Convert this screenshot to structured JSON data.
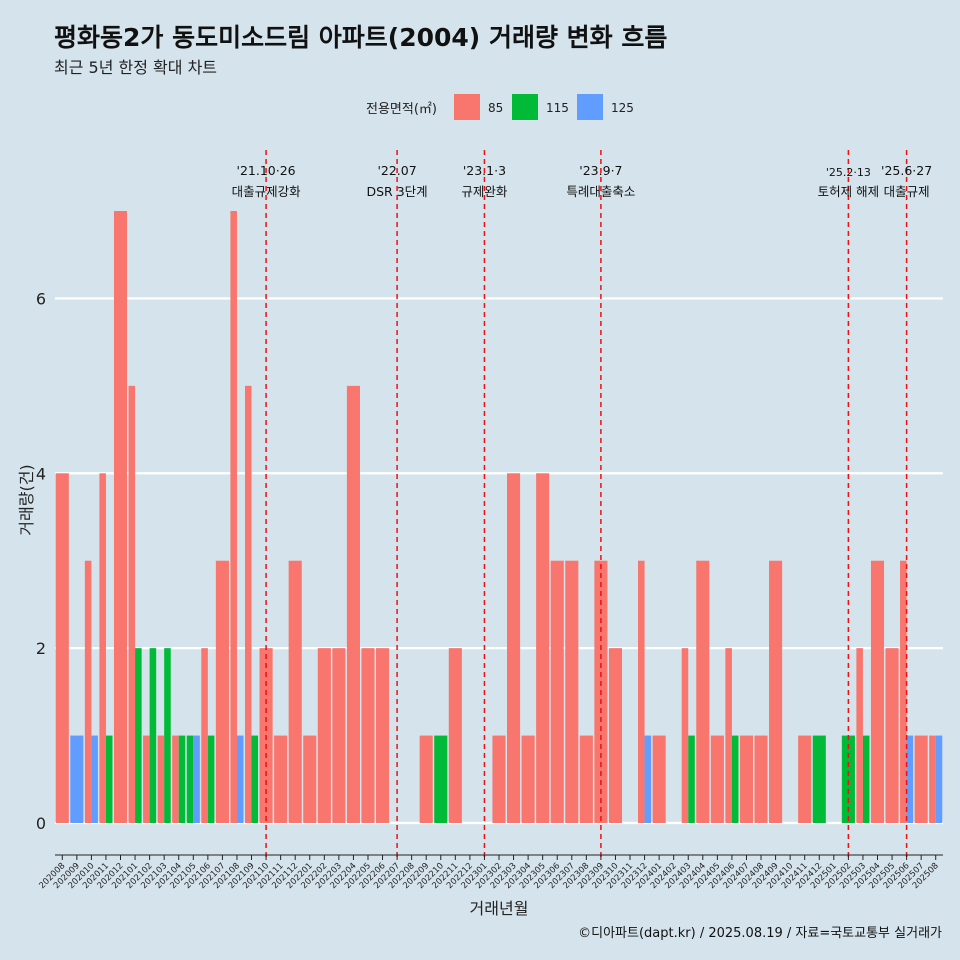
{
  "chart_data": {
    "type": "bar",
    "title": "평화동2가 동도미소드림 아파트(2004) 거래량 변화 흐름",
    "subtitle": "최근 5년 한정 확대 차트",
    "xlabel": "거래년월",
    "ylabel": "거래량(건)",
    "caption": "©디아파트(dapt.kr) / 2025.08.19 / 자료=국토교통부 실거래가",
    "legend": {
      "title": "전용면적(㎡)",
      "position": "top"
    },
    "ylim": [
      0,
      7
    ],
    "yticks": [
      0,
      2,
      4,
      6
    ],
    "categories": [
      "202008",
      "202009",
      "202010",
      "202011",
      "202012",
      "202101",
      "202102",
      "202103",
      "202104",
      "202105",
      "202106",
      "202107",
      "202108",
      "202109",
      "202110",
      "202111",
      "202112",
      "202201",
      "202202",
      "202203",
      "202204",
      "202205",
      "202206",
      "202207",
      "202208",
      "202209",
      "202210",
      "202211",
      "202212",
      "202301",
      "202302",
      "202303",
      "202304",
      "202305",
      "202306",
      "202307",
      "202308",
      "202309",
      "202310",
      "202311",
      "202312",
      "202401",
      "202402",
      "202403",
      "202404",
      "202405",
      "202406",
      "202407",
      "202408",
      "202409",
      "202410",
      "202411",
      "202412",
      "202501",
      "202502",
      "202503",
      "202504",
      "202505",
      "202506",
      "202507",
      "202508"
    ],
    "series": [
      {
        "name": "85",
        "color": "#f8766d",
        "values": [
          4,
          0,
          3,
          4,
          7,
          5,
          1,
          1,
          1,
          0,
          2,
          3,
          7,
          5,
          2,
          1,
          3,
          1,
          2,
          2,
          5,
          2,
          2,
          0,
          0,
          1,
          0,
          2,
          0,
          0,
          1,
          4,
          1,
          4,
          3,
          3,
          1,
          3,
          2,
          0,
          3,
          1,
          0,
          2,
          3,
          1,
          2,
          1,
          1,
          3,
          0,
          1,
          0,
          0,
          0,
          2,
          3,
          2,
          3,
          1,
          1
        ]
      },
      {
        "name": "115",
        "color": "#00ba38",
        "values": [
          0,
          0,
          0,
          1,
          0,
          2,
          2,
          2,
          1,
          1,
          1,
          0,
          0,
          1,
          0,
          0,
          0,
          0,
          0,
          0,
          0,
          0,
          0,
          0,
          0,
          0,
          1,
          0,
          0,
          0,
          0,
          0,
          0,
          0,
          0,
          0,
          0,
          0,
          0,
          0,
          0,
          0,
          0,
          1,
          0,
          0,
          1,
          0,
          0,
          0,
          0,
          0,
          1,
          0,
          1,
          1,
          0,
          0,
          0,
          0,
          0
        ]
      },
      {
        "name": "125",
        "color": "#619cff",
        "values": [
          0,
          1,
          1,
          0,
          0,
          0,
          0,
          0,
          0,
          1,
          0,
          0,
          1,
          0,
          0,
          0,
          0,
          0,
          0,
          0,
          0,
          0,
          0,
          0,
          0,
          0,
          0,
          0,
          0,
          0,
          0,
          0,
          0,
          0,
          0,
          0,
          0,
          0,
          0,
          0,
          1,
          0,
          0,
          0,
          0,
          0,
          0,
          0,
          0,
          0,
          0,
          0,
          0,
          0,
          0,
          0,
          0,
          0,
          1,
          0,
          1
        ]
      }
    ],
    "annotations": [
      {
        "date": "'21.10·26",
        "text": "대출규제강화",
        "category": "202110"
      },
      {
        "date": "'22.07",
        "text": "DSR 3단계",
        "category": "202207"
      },
      {
        "date": "'23.1·3",
        "text": "규제완화",
        "category": "202301"
      },
      {
        "date": "'23.9·7",
        "text": "특례대출축소",
        "category": "202309"
      },
      {
        "date": "'25.2·13",
        "text": "토허제 해제",
        "category": "202502"
      },
      {
        "date": "'25.6·27",
        "text": "대출규제",
        "category": "202506"
      }
    ]
  }
}
